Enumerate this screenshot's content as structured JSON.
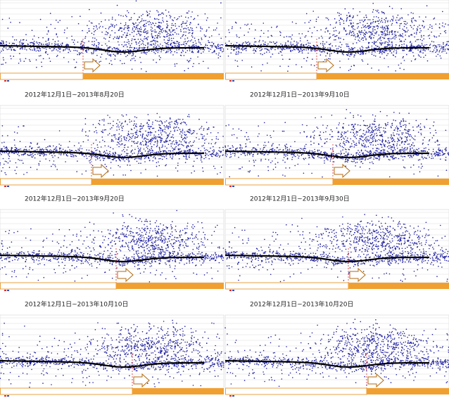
{
  "panels": [
    {
      "caption": null
    },
    {
      "caption": null
    },
    {
      "caption": "2012年12月1日~2013年8月20日"
    },
    {
      "caption": "2012年12月1日~2013年9月10日"
    },
    {
      "caption": "2012年12月1日~2013年9月20日"
    },
    {
      "caption": "2012年12月1日~2013年9月30日"
    },
    {
      "caption": "2012年12月1日~2013年10月10日"
    },
    {
      "caption": "2012年12月1日~2013年10月20日"
    }
  ]
}
